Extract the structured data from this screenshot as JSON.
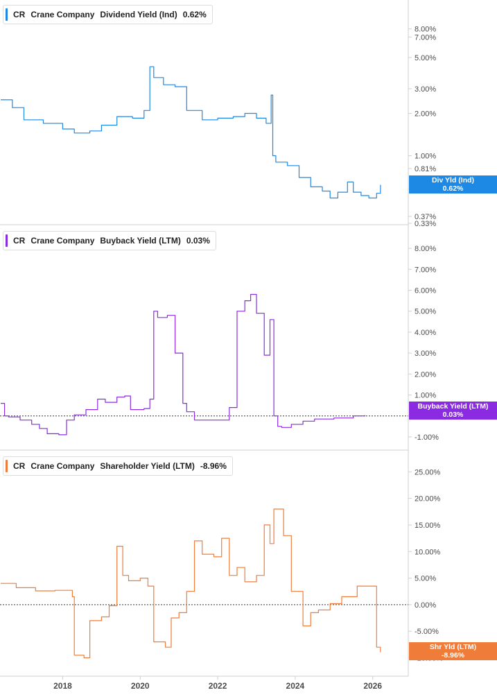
{
  "panels": [
    {
      "legend": {
        "ticker": "CR",
        "company": "Crane Company",
        "metric": "Dividend Yield (Ind)",
        "value": "0.62%"
      },
      "callout": {
        "label": "Div Yld (Ind)",
        "value": "0.62%"
      },
      "color": "#1e88e5"
    },
    {
      "legend": {
        "ticker": "CR",
        "company": "Crane Company",
        "metric": "Buyback Yield (LTM)",
        "value": "0.03%"
      },
      "callout": {
        "label": "Buyback Yield (LTM)",
        "value": "0.03%"
      },
      "color": "#8a2be2"
    },
    {
      "legend": {
        "ticker": "CR",
        "company": "Crane Company",
        "metric": "Shareholder Yield (LTM)",
        "value": "-8.96%"
      },
      "callout": {
        "label": "Shr Yld (LTM)",
        "value": "-8.96%"
      },
      "color": "#f07c3a"
    }
  ],
  "chart_data": [
    {
      "type": "line",
      "title": "CR Crane Company Dividend Yield (Ind)",
      "y_scale": "log",
      "ylim": [
        0.33,
        10
      ],
      "y_ticks": [
        "8.00%",
        "7.00%",
        "5.00%",
        "3.00%",
        "2.00%",
        "1.00%",
        "0.81%",
        "0.58%",
        "0.37%",
        "0.33%"
      ],
      "x_ticks": [
        "2018",
        "2020",
        "2022",
        "2024",
        "2026"
      ],
      "series": [
        {
          "name": "Dividend Yield (Ind)",
          "x": [
            2016.4,
            2016.7,
            2017.0,
            2017.5,
            2018.0,
            2018.3,
            2018.7,
            2019.0,
            2019.4,
            2019.8,
            2020.1,
            2020.25,
            2020.35,
            2020.6,
            2020.9,
            2021.2,
            2021.6,
            2022.0,
            2022.4,
            2022.7,
            2023.0,
            2023.25,
            2023.38,
            2023.42,
            2023.5,
            2023.8,
            2024.1,
            2024.4,
            2024.7,
            2024.9,
            2025.1,
            2025.35,
            2025.5,
            2025.7,
            2025.9,
            2026.1,
            2026.2
          ],
          "values": [
            2.5,
            2.2,
            1.8,
            1.7,
            1.55,
            1.45,
            1.5,
            1.65,
            1.9,
            1.85,
            2.1,
            4.3,
            3.6,
            3.2,
            3.1,
            2.1,
            1.8,
            1.85,
            1.9,
            2.0,
            1.85,
            1.7,
            2.7,
            1.0,
            0.9,
            0.85,
            0.7,
            0.6,
            0.56,
            0.5,
            0.55,
            0.65,
            0.55,
            0.52,
            0.5,
            0.54,
            0.62
          ]
        }
      ]
    },
    {
      "type": "line",
      "title": "CR Crane Company Buyback Yield (LTM)",
      "ylim": [
        -1.5,
        8.5
      ],
      "y_ticks": [
        "8.00%",
        "7.00%",
        "6.00%",
        "5.00%",
        "4.00%",
        "3.00%",
        "2.00%",
        "1.00%",
        "-1.00%"
      ],
      "x_ticks": [
        "2018",
        "2020",
        "2022",
        "2024",
        "2026"
      ],
      "series": [
        {
          "name": "Buyback Yield (LTM)",
          "x": [
            2016.4,
            2016.5,
            2016.6,
            2016.9,
            2017.2,
            2017.4,
            2017.6,
            2017.9,
            2018.1,
            2018.3,
            2018.6,
            2018.9,
            2019.1,
            2019.4,
            2019.6,
            2019.75,
            2020.1,
            2020.25,
            2020.35,
            2020.45,
            2020.7,
            2020.9,
            2021.1,
            2021.2,
            2021.4,
            2021.6,
            2022.0,
            2022.3,
            2022.5,
            2022.7,
            2022.85,
            2023.0,
            2023.2,
            2023.35,
            2023.45,
            2023.55,
            2023.65,
            2023.9,
            2024.2,
            2024.5,
            2025.0,
            2025.5,
            2025.8
          ],
          "values": [
            0.6,
            0.0,
            -0.05,
            -0.2,
            -0.4,
            -0.6,
            -0.85,
            -0.9,
            -0.2,
            0.05,
            0.3,
            0.8,
            0.65,
            0.9,
            0.95,
            0.3,
            0.35,
            0.8,
            5.0,
            4.7,
            4.8,
            3.0,
            0.6,
            0.2,
            -0.2,
            -0.2,
            -0.2,
            0.4,
            5.0,
            5.5,
            5.8,
            4.9,
            2.9,
            4.6,
            0.0,
            -0.5,
            -0.55,
            -0.4,
            -0.25,
            -0.15,
            -0.1,
            0.0,
            0.03
          ]
        }
      ]
    },
    {
      "type": "line",
      "title": "CR Crane Company Shareholder Yield (LTM)",
      "ylim": [
        -11.5,
        27
      ],
      "y_ticks": [
        "25.00%",
        "20.00%",
        "15.00%",
        "10.00%",
        "5.00%",
        "0.00%",
        "-5.00%",
        "-10.00%"
      ],
      "x_ticks": [
        "2018",
        "2020",
        "2022",
        "2024",
        "2026"
      ],
      "series": [
        {
          "name": "Shareholder Yield (LTM)",
          "x": [
            2016.4,
            2016.8,
            2017.3,
            2017.8,
            2018.25,
            2018.3,
            2018.55,
            2018.7,
            2019.0,
            2019.2,
            2019.4,
            2019.55,
            2019.7,
            2020.0,
            2020.2,
            2020.35,
            2020.65,
            2020.8,
            2021.0,
            2021.2,
            2021.4,
            2021.6,
            2021.9,
            2022.1,
            2022.3,
            2022.5,
            2022.7,
            2023.0,
            2023.2,
            2023.35,
            2023.45,
            2023.7,
            2023.9,
            2024.2,
            2024.4,
            2024.6,
            2024.9,
            2025.2,
            2025.6,
            2025.95,
            2026.1,
            2026.2
          ],
          "values": [
            4.0,
            3.2,
            2.6,
            2.7,
            1.5,
            -9.5,
            -10.0,
            -3.0,
            -2.3,
            -0.2,
            11.0,
            5.5,
            4.5,
            5.0,
            3.5,
            -7.0,
            -8.0,
            -2.5,
            -1.5,
            2.5,
            12.0,
            9.5,
            9.0,
            12.5,
            5.5,
            7.0,
            4.3,
            5.5,
            15.0,
            11.5,
            18.0,
            13.0,
            2.5,
            -4.0,
            -1.5,
            -1.0,
            0.2,
            1.5,
            3.5,
            3.5,
            -8.0,
            -8.96
          ]
        }
      ]
    }
  ]
}
